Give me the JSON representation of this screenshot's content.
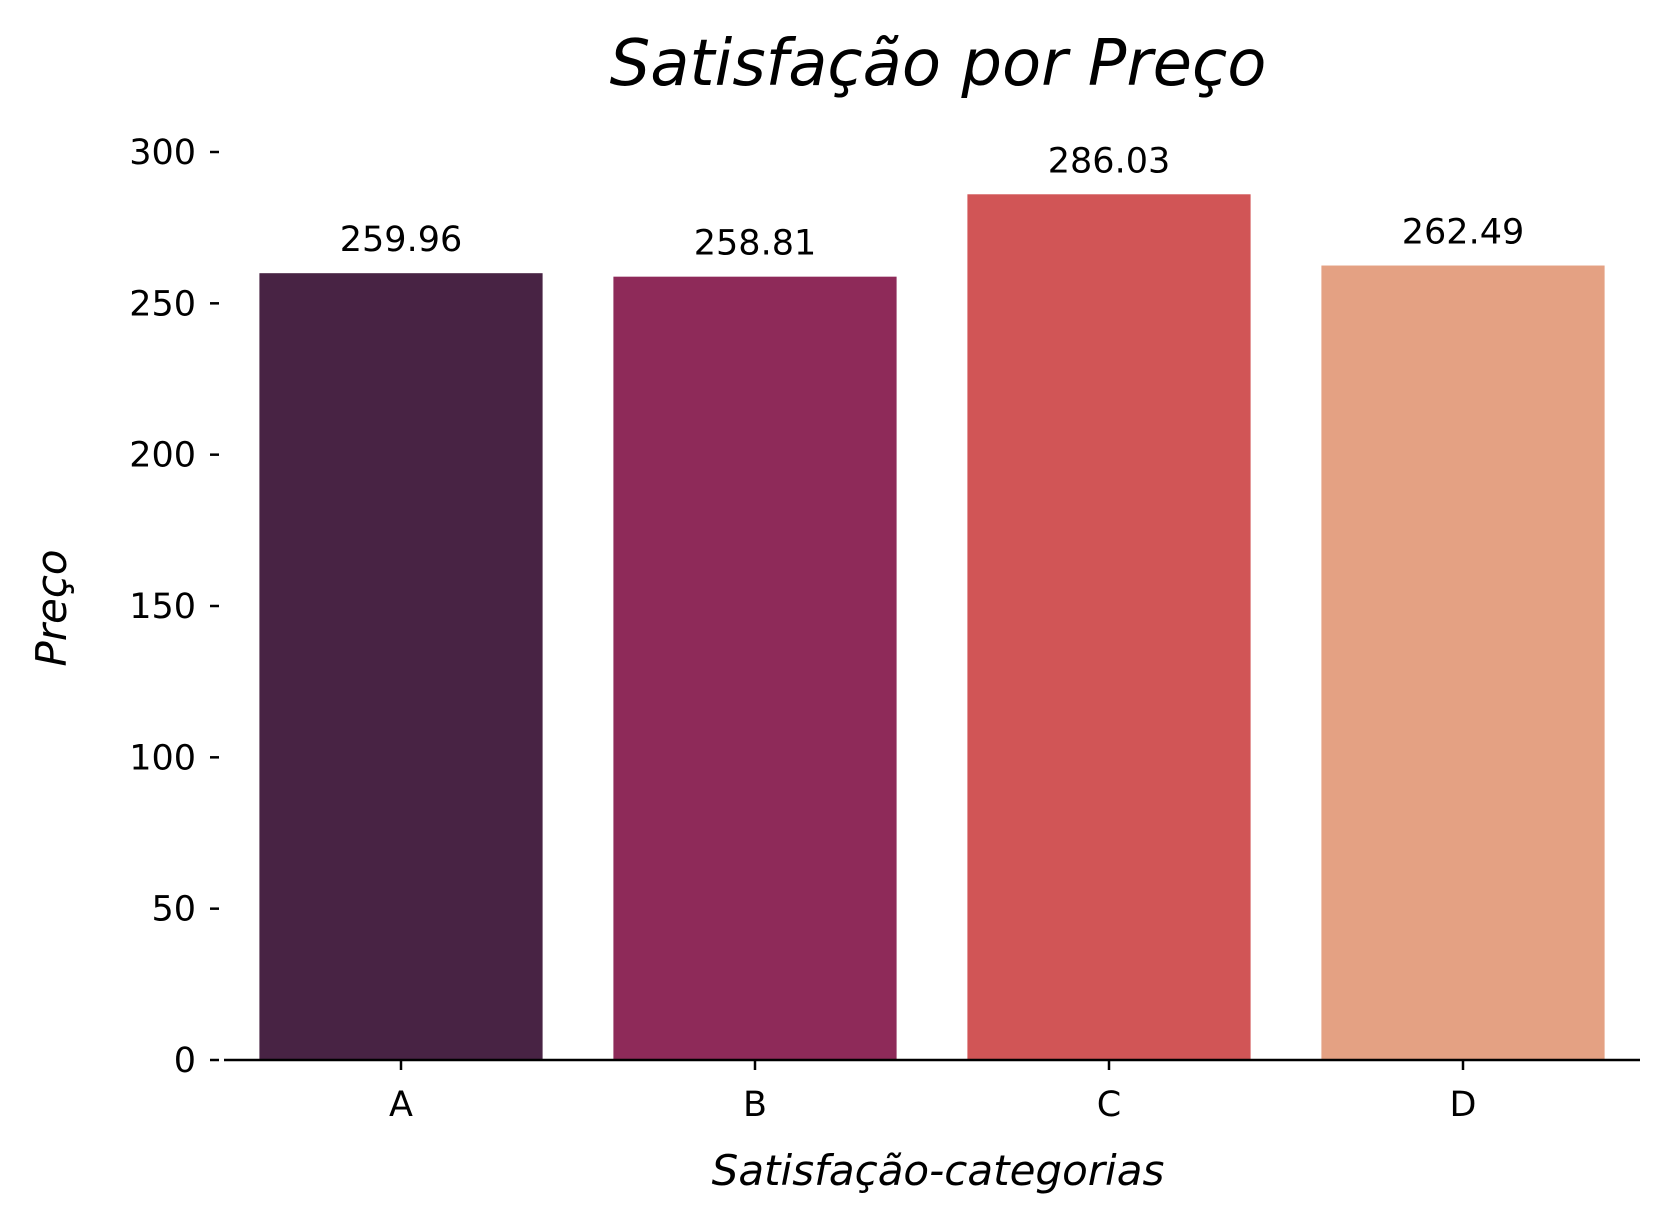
{
  "chart_data": {
    "type": "bar",
    "title": "Satisfação por Preço",
    "xlabel": "Satisfação-categorias",
    "ylabel": "Preço",
    "categories": [
      "A",
      "B",
      "C",
      "D"
    ],
    "values": [
      259.96,
      258.81,
      286.03,
      262.49
    ],
    "value_labels": [
      "259.96",
      "258.81",
      "286.03",
      "262.49"
    ],
    "colors": [
      "#482344",
      "#8e2a59",
      "#d15556",
      "#e4a183"
    ],
    "yticks": [
      0,
      50,
      100,
      150,
      200,
      250,
      300
    ],
    "ylim": [
      0,
      300
    ],
    "grid": false,
    "legend": false
  }
}
